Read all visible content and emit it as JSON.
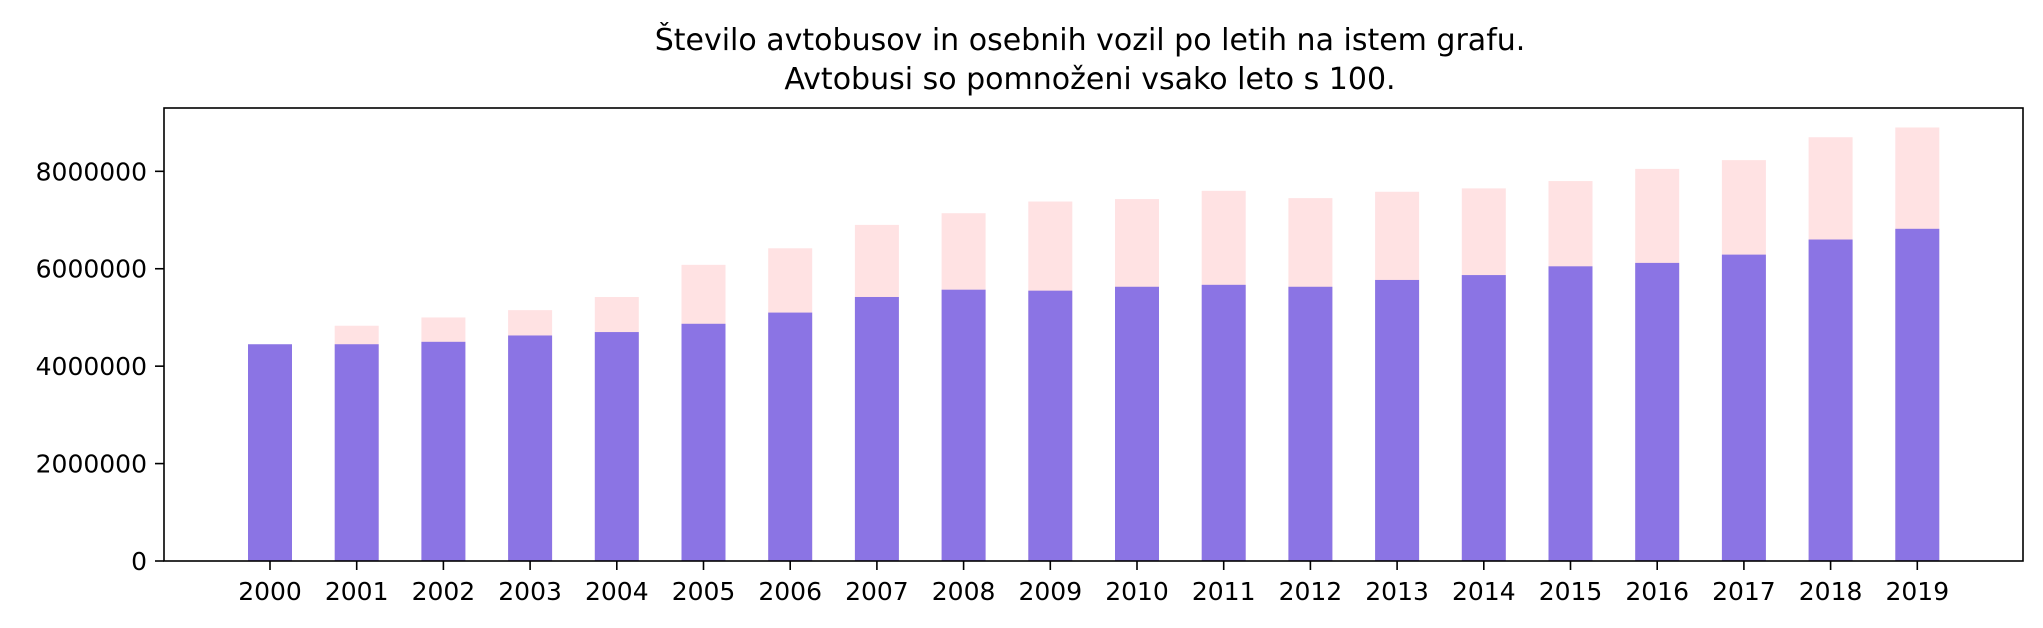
{
  "chart_data": {
    "type": "bar",
    "title_lines": [
      "Število avtobusov in osebnih vozil po letih na istem grafu.",
      "Avtobusi so pomnoženi vsako leto s 100."
    ],
    "xlabel": "",
    "ylabel": "",
    "categories": [
      "2000",
      "2001",
      "2002",
      "2003",
      "2004",
      "2005",
      "2006",
      "2007",
      "2008",
      "2009",
      "2010",
      "2011",
      "2012",
      "2013",
      "2014",
      "2015",
      "2016",
      "2017",
      "2018",
      "2019"
    ],
    "series": [
      {
        "color": "#8b74e4",
        "values": [
          4450000,
          4450000,
          4500000,
          4630000,
          4700000,
          4870000,
          5100000,
          5420000,
          5570000,
          5550000,
          5630000,
          5670000,
          5630000,
          5770000,
          5870000,
          6050000,
          6120000,
          6290000,
          6600000,
          6820000
        ]
      },
      {
        "color": "#ffe2e3",
        "values": [
          4400000,
          4830000,
          5000000,
          5150000,
          5420000,
          6080000,
          6420000,
          6900000,
          7140000,
          7380000,
          7430000,
          7600000,
          7450000,
          7580000,
          7650000,
          7800000,
          8050000,
          8230000,
          8700000,
          8900000
        ]
      }
    ],
    "ylim": [
      0,
      9300000
    ],
    "yticks": [
      0,
      2000000,
      4000000,
      6000000,
      8000000
    ],
    "ytick_labels": [
      "0",
      "2000000",
      "4000000",
      "6000000",
      "8000000"
    ],
    "grid": false,
    "legend": "none"
  }
}
